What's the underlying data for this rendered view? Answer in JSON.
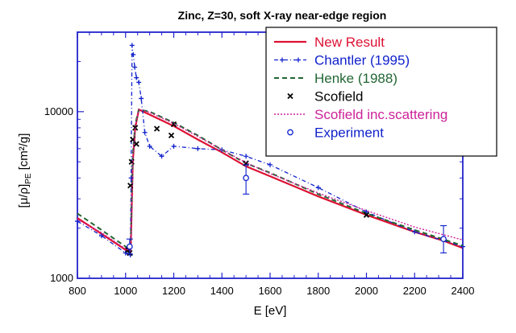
{
  "chart_data": {
    "type": "line",
    "title": "Zinc, Z=30, soft X-ray near-edge region",
    "xlabel": "E [eV]",
    "ylabel": {
      "prefix": "[μ/ρ]",
      "subscript": "PE",
      "suffix": "[cm²/g]"
    },
    "xlim": [
      800,
      2400
    ],
    "ylim": [
      1000,
      30000
    ],
    "yscale": "log",
    "x_ticks": [
      800,
      1000,
      1200,
      1400,
      1600,
      1800,
      2000,
      2200,
      2400
    ],
    "y_ticks": [
      1000,
      10000
    ],
    "legend_position": "top-right",
    "series": [
      {
        "name": "New Result",
        "style": "solid",
        "color": "#dd1133",
        "x": [
          800,
          900,
          1000,
          1020,
          1022,
          1030,
          1040,
          1055,
          1100,
          1200,
          1300,
          1400,
          1500,
          1600,
          1800,
          2000,
          2200,
          2320,
          2400
        ],
        "y": [
          2300,
          1850,
          1480,
          1440,
          1600,
          5000,
          8000,
          10300,
          9600,
          8200,
          6800,
          5700,
          4700,
          4100,
          3100,
          2400,
          1900,
          1680,
          1520
        ]
      },
      {
        "name": "Chantler (1995)",
        "style": "dash-dot-plus",
        "color": "#1122cc",
        "x": [
          800,
          900,
          1000,
          1020,
          1023,
          1027,
          1032,
          1038,
          1045,
          1055,
          1065,
          1080,
          1100,
          1150,
          1200,
          1300,
          1400,
          1500,
          1600,
          1800,
          2000,
          2200,
          2400
        ],
        "y": [
          2200,
          1800,
          1420,
          1380,
          4000,
          25000,
          22000,
          18500,
          16000,
          15000,
          12000,
          7500,
          6200,
          5400,
          6200,
          6000,
          5900,
          5400,
          4800,
          3500,
          2500,
          1900,
          1550
        ]
      },
      {
        "name": "Henke (1988)",
        "style": "dash",
        "color": "#226633",
        "x": [
          800,
          900,
          1000,
          1020,
          1022,
          1030,
          1040,
          1055,
          1100,
          1200,
          1300,
          1400,
          1500,
          1600,
          1800,
          2000,
          2200,
          2400
        ],
        "y": [
          2450,
          1950,
          1550,
          1480,
          1800,
          5500,
          8400,
          10300,
          10000,
          8600,
          7200,
          5900,
          4900,
          4300,
          3200,
          2450,
          1950,
          1570
        ]
      },
      {
        "name": "Scofield",
        "style": "markers-x",
        "color": "#000000",
        "x": [
          1010,
          1017,
          1020,
          1025,
          1030,
          1040,
          1045,
          1130,
          1190,
          1200,
          1500,
          2000
        ],
        "y": [
          1480,
          1420,
          3600,
          5000,
          6800,
          8000,
          6400,
          7900,
          7200,
          8400,
          4900,
          2400
        ]
      },
      {
        "name": "Scofield  inc.scattering",
        "style": "dot",
        "color": "#cc2299",
        "x": [
          800,
          900,
          1000,
          1020,
          1022,
          1030,
          1040,
          1055,
          1100,
          1200,
          1300,
          1400,
          1500,
          1600,
          1800,
          2000,
          2200,
          2400
        ],
        "y": [
          2250,
          1880,
          1500,
          1460,
          1620,
          5200,
          8200,
          10300,
          9900,
          8500,
          7100,
          5900,
          4950,
          4250,
          3250,
          2550,
          2030,
          1700
        ]
      },
      {
        "name": "Experiment",
        "style": "circles-errorbars",
        "color": "#1122cc",
        "x": [
          1017,
          1500,
          2320
        ],
        "y": [
          1550,
          4000,
          1720
        ],
        "err_low": [
          1400,
          3200,
          1420
        ],
        "err_high": [
          1720,
          4800,
          2070
        ]
      }
    ]
  }
}
